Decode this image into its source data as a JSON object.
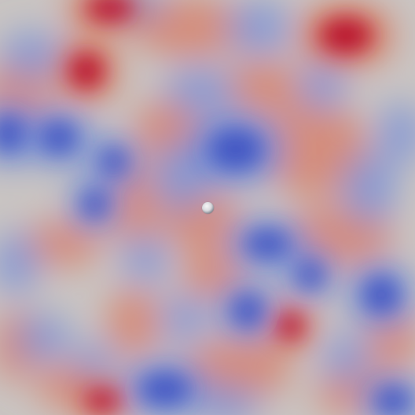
{
  "viewport": {
    "background": "#c9c4c2"
  },
  "colormap": {
    "name": "coolwarm",
    "cool": "#3b4cc0",
    "neutral": "#c9c4c2",
    "warm": "#b40426"
  },
  "probe": {
    "icon": "sphere-icon",
    "color": "#d8d8dc"
  }
}
